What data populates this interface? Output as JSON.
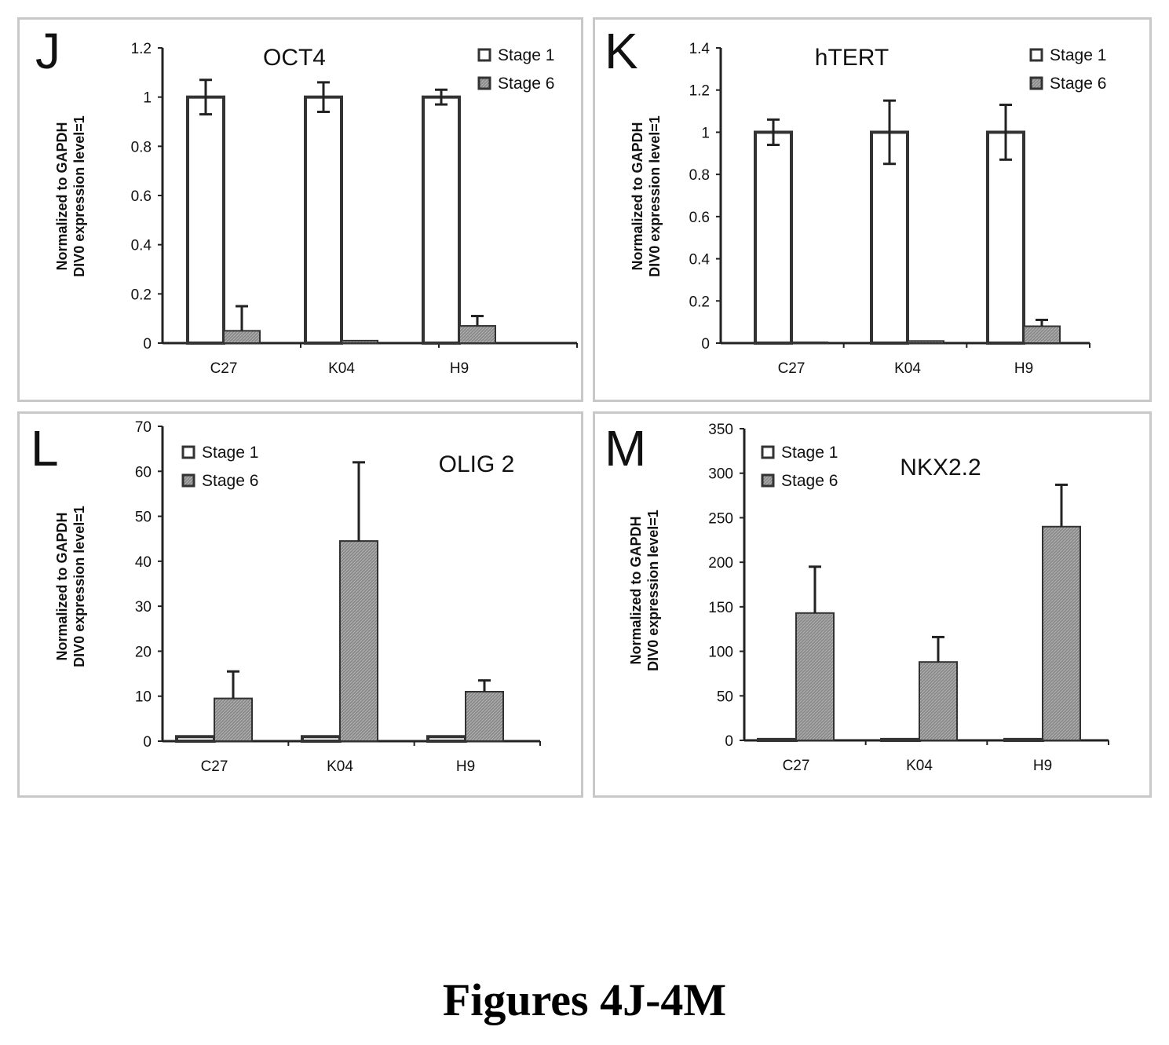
{
  "caption": "Figures 4J-4M",
  "colors": {
    "stage1": "#ffffff",
    "stage6": "#8a8a8a",
    "bar_stroke": "#333333"
  },
  "chart_data": [
    {
      "id": "J",
      "type": "bar",
      "panel_letter": "J",
      "title": "OCT4",
      "ylabel": [
        "Normalized to GAPDH",
        "DIV0 expression level=1"
      ],
      "xlabel": "",
      "categories": [
        "C27",
        "K04",
        "H9"
      ],
      "ylim": [
        0,
        1.2
      ],
      "yticks": [
        0,
        0.2,
        0.4,
        0.6,
        0.8,
        1,
        1.2
      ],
      "ytick_labels": [
        "0",
        "0.2",
        "0.4",
        "0.6",
        "0.8",
        "1",
        "1.2"
      ],
      "legend": "top-right",
      "series": [
        {
          "name": "Stage 1",
          "key": "stage1",
          "values": [
            1.0,
            1.0,
            1.0
          ],
          "errors": [
            0.07,
            0.06,
            0.03
          ]
        },
        {
          "name": "Stage 6",
          "key": "stage6",
          "values": [
            0.05,
            0.01,
            0.07
          ],
          "errors": [
            0.1,
            0,
            0.04
          ]
        }
      ]
    },
    {
      "id": "K",
      "type": "bar",
      "panel_letter": "K",
      "title": "hTERT",
      "ylabel": [
        "Normalized to GAPDH",
        "DIV0 expression level=1"
      ],
      "xlabel": "",
      "categories": [
        "C27",
        "K04",
        "H9"
      ],
      "ylim": [
        0,
        1.4
      ],
      "yticks": [
        0,
        0.2,
        0.4,
        0.6,
        0.8,
        1,
        1.2,
        1.4
      ],
      "ytick_labels": [
        "0",
        "0.2",
        "0.4",
        "0.6",
        "0.8",
        "1",
        "1.2",
        "1.4"
      ],
      "legend": "top-right",
      "series": [
        {
          "name": "Stage 1",
          "key": "stage1",
          "values": [
            1.0,
            1.0,
            1.0
          ],
          "errors": [
            0.06,
            0.15,
            0.13
          ]
        },
        {
          "name": "Stage 6",
          "key": "stage6",
          "values": [
            0.0,
            0.01,
            0.08
          ],
          "errors": [
            0,
            0,
            0.03
          ]
        }
      ]
    },
    {
      "id": "L",
      "type": "bar",
      "panel_letter": "L",
      "title": "OLIG 2",
      "ylabel": [
        "Normalized to GAPDH",
        "DIV0 expression level=1"
      ],
      "xlabel": "",
      "categories": [
        "C27",
        "K04",
        "H9"
      ],
      "ylim": [
        0,
        70
      ],
      "yticks": [
        0,
        10,
        20,
        30,
        40,
        50,
        60,
        70
      ],
      "ytick_labels": [
        "0",
        "10",
        "20",
        "30",
        "40",
        "50",
        "60",
        "70"
      ],
      "legend": "top-left",
      "series": [
        {
          "name": "Stage 1",
          "key": "stage1",
          "values": [
            1.0,
            1.0,
            1.0
          ],
          "errors": [
            0,
            0,
            0
          ]
        },
        {
          "name": "Stage 6",
          "key": "stage6",
          "values": [
            9.5,
            44.5,
            11
          ],
          "errors": [
            6,
            17.5,
            2.5
          ]
        }
      ]
    },
    {
      "id": "M",
      "type": "bar",
      "panel_letter": "M",
      "title": "NKX2.2",
      "ylabel": [
        "Normalized to GAPDH",
        "DIV0 expression level=1"
      ],
      "xlabel": "",
      "categories": [
        "C27",
        "K04",
        "H9"
      ],
      "ylim": [
        0,
        350
      ],
      "yticks": [
        0,
        50,
        100,
        150,
        200,
        250,
        300,
        350
      ],
      "ytick_labels": [
        "0",
        "50",
        "100",
        "150",
        "200",
        "250",
        "300",
        "350"
      ],
      "legend": "top-left",
      "series": [
        {
          "name": "Stage 1",
          "key": "stage1",
          "values": [
            1.0,
            1.0,
            1.0
          ],
          "errors": [
            0,
            0,
            0
          ]
        },
        {
          "name": "Stage 6",
          "key": "stage6",
          "values": [
            143,
            88,
            240
          ],
          "errors": [
            52,
            28,
            47
          ]
        }
      ]
    }
  ]
}
